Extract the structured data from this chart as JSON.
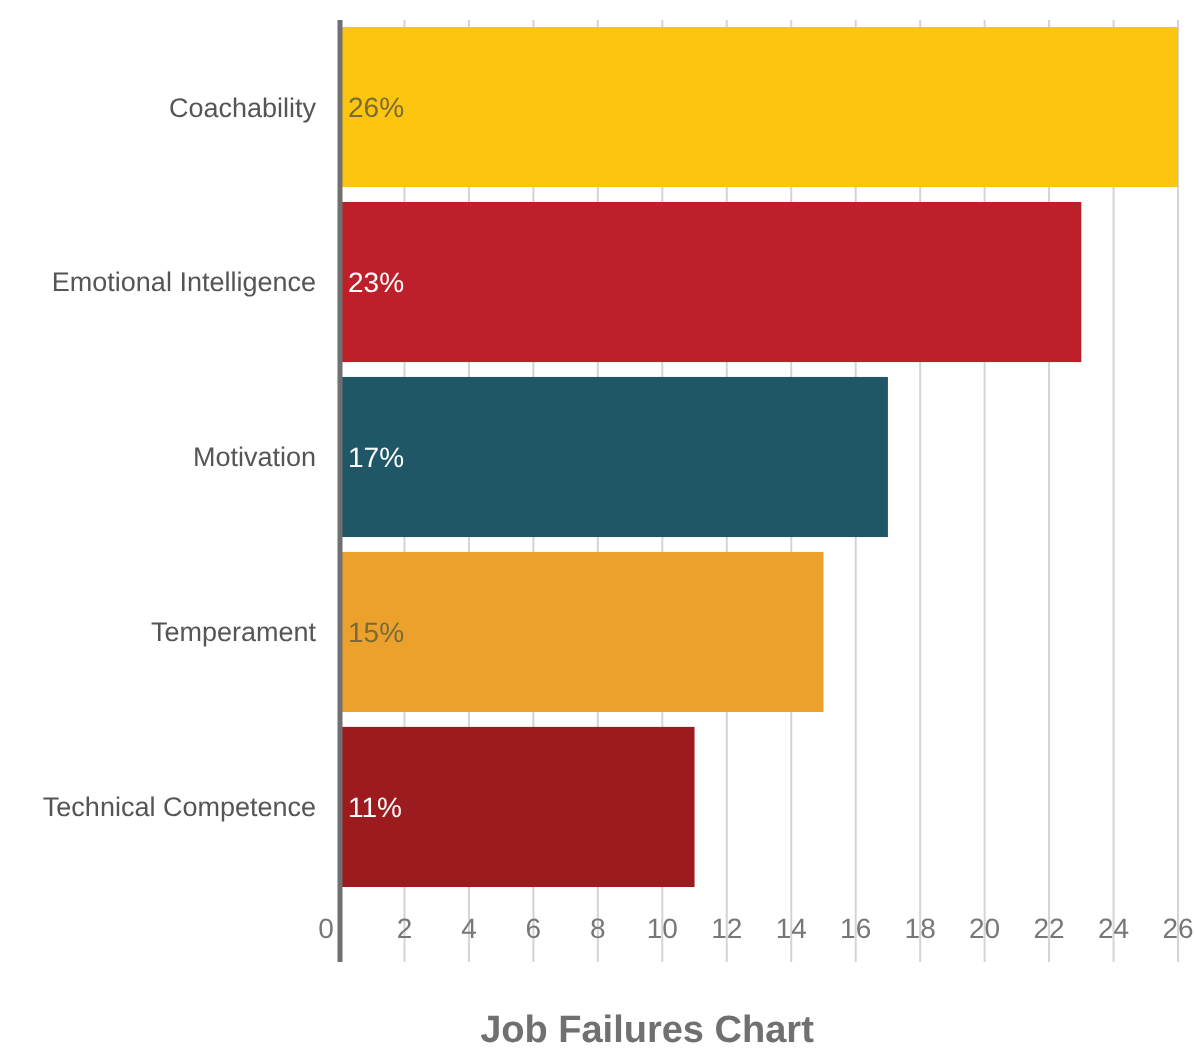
{
  "chart_data": {
    "type": "bar",
    "orientation": "horizontal",
    "title": "Job Failures Chart",
    "categories": [
      "Coachability",
      "Emotional Intelligence",
      "Motivation",
      "Temperament",
      "Technical Competence"
    ],
    "values": [
      26,
      23,
      17,
      15,
      11
    ],
    "value_labels": [
      "26%",
      "23%",
      "17%",
      "15%",
      "11%"
    ],
    "colors": [
      "#fcc50f",
      "#be202b",
      "#1f5767",
      "#eca12d",
      "#9b1b1e"
    ],
    "xlim": [
      0,
      26
    ],
    "xticks": [
      0,
      2,
      4,
      6,
      8,
      10,
      12,
      14,
      16,
      18,
      20,
      22,
      24,
      26
    ],
    "grid": "x"
  }
}
